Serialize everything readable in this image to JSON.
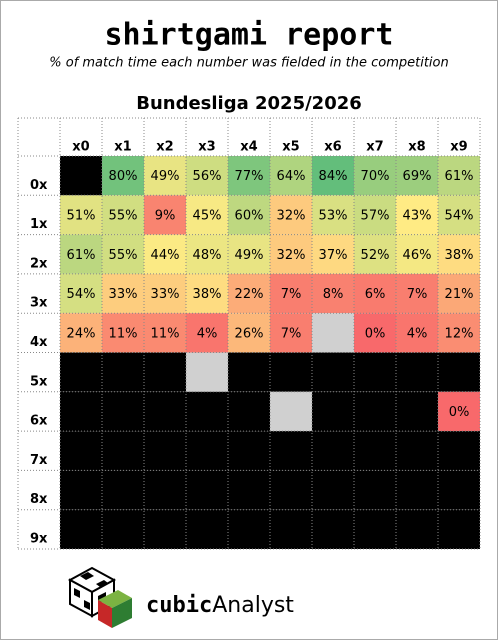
{
  "chart_data": {
    "type": "heatmap",
    "title": "shirtgami report",
    "subtitle": "% of match time each number was fielded in the competition",
    "heading": "Bundesliga 2025/2026",
    "x_categories": [
      "x0",
      "x1",
      "x2",
      "x3",
      "x4",
      "x5",
      "x6",
      "x7",
      "x8",
      "x9"
    ],
    "y_categories": [
      "0x",
      "1x",
      "2x",
      "3x",
      "4x",
      "5x",
      "6x",
      "7x",
      "8x",
      "9x"
    ],
    "values": [
      [
        null,
        80,
        49,
        56,
        77,
        64,
        84,
        70,
        69,
        61
      ],
      [
        51,
        55,
        9,
        45,
        60,
        32,
        53,
        57,
        43,
        54
      ],
      [
        61,
        55,
        44,
        48,
        49,
        32,
        37,
        52,
        46,
        38
      ],
      [
        54,
        33,
        33,
        38,
        22,
        7,
        8,
        6,
        7,
        21
      ],
      [
        24,
        11,
        11,
        4,
        26,
        7,
        null,
        0,
        4,
        12
      ],
      [
        null,
        null,
        null,
        null,
        null,
        null,
        null,
        null,
        null,
        null
      ],
      [
        null,
        null,
        null,
        null,
        null,
        null,
        null,
        null,
        null,
        0
      ],
      [
        null,
        null,
        null,
        null,
        null,
        null,
        null,
        null,
        null,
        null
      ],
      [
        null,
        null,
        null,
        null,
        null,
        null,
        null,
        null,
        null,
        null
      ],
      [
        null,
        null,
        null,
        null,
        null,
        null,
        null,
        null,
        null,
        null
      ]
    ],
    "value_labels": [
      [
        null,
        "80%",
        "49%",
        "56%",
        "77%",
        "64%",
        "84%",
        "70%",
        "69%",
        "61%"
      ],
      [
        "51%",
        "55%",
        "9%",
        "45%",
        "60%",
        "32%",
        "53%",
        "57%",
        "43%",
        "54%"
      ],
      [
        "61%",
        "55%",
        "44%",
        "48%",
        "49%",
        "32%",
        "37%",
        "52%",
        "46%",
        "38%"
      ],
      [
        "54%",
        "33%",
        "33%",
        "38%",
        "22%",
        "7%",
        "8%",
        "6%",
        "7%",
        "21%"
      ],
      [
        "24%",
        "11%",
        "11%",
        "4%",
        "26%",
        "7%",
        null,
        "0%",
        "4%",
        "12%"
      ],
      [
        null,
        null,
        null,
        null,
        null,
        null,
        null,
        null,
        null,
        null
      ],
      [
        null,
        null,
        null,
        null,
        null,
        null,
        null,
        null,
        null,
        "0%"
      ],
      [
        null,
        null,
        null,
        null,
        null,
        null,
        null,
        null,
        null,
        null
      ],
      [
        null,
        null,
        null,
        null,
        null,
        null,
        null,
        null,
        null,
        null
      ],
      [
        null,
        null,
        null,
        null,
        null,
        null,
        null,
        null,
        null,
        null
      ]
    ],
    "grey_cells": [
      [
        4,
        6
      ],
      [
        5,
        3
      ],
      [
        6,
        5
      ]
    ],
    "empty_color": "#000000",
    "grey_color": "#d0d0d0",
    "color_scale": [
      "#f8696b",
      "#ffeb84",
      "#63be7b"
    ]
  },
  "footer": {
    "brand_bold": "cubic",
    "brand_rest": "Analyst"
  }
}
